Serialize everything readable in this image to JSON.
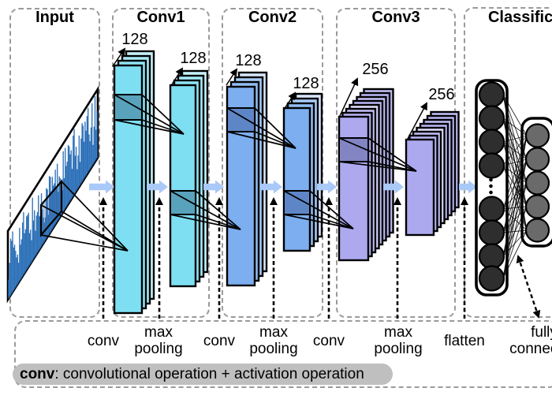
{
  "panels": {
    "input": {
      "title": "Input"
    },
    "conv1": {
      "title": "Conv1",
      "stack1_count": "128",
      "stack2_count": "128"
    },
    "conv2": {
      "title": "Conv2",
      "stack1_count": "128",
      "stack2_count": "128"
    },
    "conv3": {
      "title": "Conv3",
      "stack1_count": "256",
      "stack2_count": "256"
    },
    "classification": {
      "title": "Classification"
    }
  },
  "operations": [
    {
      "name": "conv-1",
      "label": "conv"
    },
    {
      "name": "max-pooling-1",
      "label": "max pooling"
    },
    {
      "name": "conv-2",
      "label": "conv"
    },
    {
      "name": "max-pooling-2",
      "label": "max pooling"
    },
    {
      "name": "conv-3",
      "label": "conv"
    },
    {
      "name": "max-pooling-3",
      "label": "max pooling"
    },
    {
      "name": "flatten",
      "label": "flatten"
    },
    {
      "name": "fully-connected",
      "label": "fully connected"
    }
  ],
  "legend": {
    "term": "conv",
    "definition": ": convolutional operation + activation operation"
  },
  "colors": {
    "conv1_front": "#7EDFF2",
    "conv1_backs": [
      "#7EDFF2",
      "#8FE4F4",
      "#A6EAF7",
      "#C6F2FA"
    ],
    "conv1_patch": "#58A2BC",
    "conv2_front": "#7CAEF0",
    "conv2_backs": [
      "#7CAEF0",
      "#8FBCF3",
      "#A8CAF6",
      "#D8E5FB"
    ],
    "conv2_patch": "#5E86C6",
    "conv3_front": "#ACA9EF",
    "conv3_backs": [
      "#ACA9EF",
      "#B6B3F1",
      "#C0BDF4",
      "#DCDBF9",
      "#B6B3F1",
      "#C0BDF4",
      "#B6B3F1",
      "#C0BDF4"
    ],
    "conv3_patch": "#8285C2",
    "flow_arrow": "#A9C9F8",
    "neuron_layer1": "#2E2E2E",
    "neuron_layer2": "#6A6A6A",
    "waveform": "#2E71B8",
    "panel_border": "#9A9A9A",
    "legend_background": "#BFBFBF"
  }
}
